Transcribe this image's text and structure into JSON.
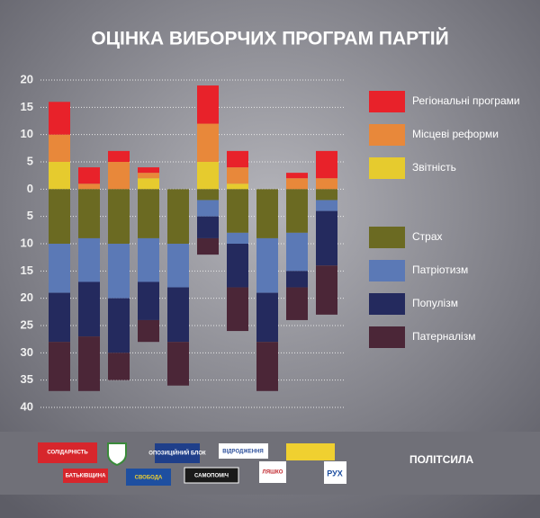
{
  "chart_data": {
    "type": "diverging-stacked-bar",
    "title": "ОЦІНКА ВИБОРЧИХ ПРОГРАМ ПАРТІЙ",
    "categories": [
      null,
      null,
      null,
      null,
      null,
      null,
      null,
      null,
      null,
      null
    ],
    "series": [
      {
        "name": "Регіональні програми",
        "color": "#e8222a",
        "values": [
          6,
          3,
          2,
          1,
          0,
          7,
          3,
          0,
          1,
          5
        ]
      },
      {
        "name": "Місцеві реформи",
        "color": "#e8883a",
        "values": [
          5,
          1,
          5,
          1,
          0,
          7,
          3,
          0,
          2,
          2
        ]
      },
      {
        "name": "Звітність",
        "color": "#e6cb2e",
        "values": [
          5,
          0,
          0,
          2,
          0,
          5,
          1,
          0,
          0,
          0
        ]
      },
      {
        "name": "Страх",
        "color": "#6b6a22",
        "values": [
          -10,
          -9,
          -10,
          -9,
          -10,
          -2,
          -8,
          -9,
          -8,
          -2
        ]
      },
      {
        "name": "Патріотизм",
        "color": "#5b79b6",
        "values": [
          -9,
          -8,
          -10,
          -8,
          -8,
          -3,
          -2,
          -10,
          -7,
          -2
        ]
      },
      {
        "name": "Популізм",
        "color": "#242a5e",
        "values": [
          -9,
          -10,
          -10,
          -7,
          -10,
          -4,
          -8,
          -9,
          -3,
          -10
        ]
      },
      {
        "name": "Патерналізм",
        "color": "#4b2637",
        "values": [
          -9,
          -10,
          -5,
          -4,
          -8,
          -3,
          -8,
          -9,
          -6,
          -9
        ]
      }
    ],
    "ylim": [
      -40,
      20
    ],
    "yticks": [
      20,
      15,
      10,
      5,
      0,
      {
        "value": -5,
        "label": "5"
      },
      {
        "value": -10,
        "label": "10"
      },
      {
        "value": -15,
        "label": "15"
      },
      {
        "value": -20,
        "label": "20"
      },
      {
        "value": -25,
        "label": "25"
      },
      {
        "value": -30,
        "label": "30"
      },
      {
        "value": -35,
        "label": "35"
      },
      {
        "value": -40,
        "label": "40"
      }
    ],
    "grid": true
  },
  "footer": {
    "logos": [
      "СОЛІДАРНІСТЬ",
      "ОПОЗИЦІЙНИЙ БЛОК",
      "ВІДРОДЖЕННЯ",
      "БАТЬКІВЩИНА",
      "СВОБОДА",
      "САМОПОМІЧ",
      "ЛЯШКО",
      "РУХ"
    ],
    "source": "ПОЛІТСИЛА"
  }
}
